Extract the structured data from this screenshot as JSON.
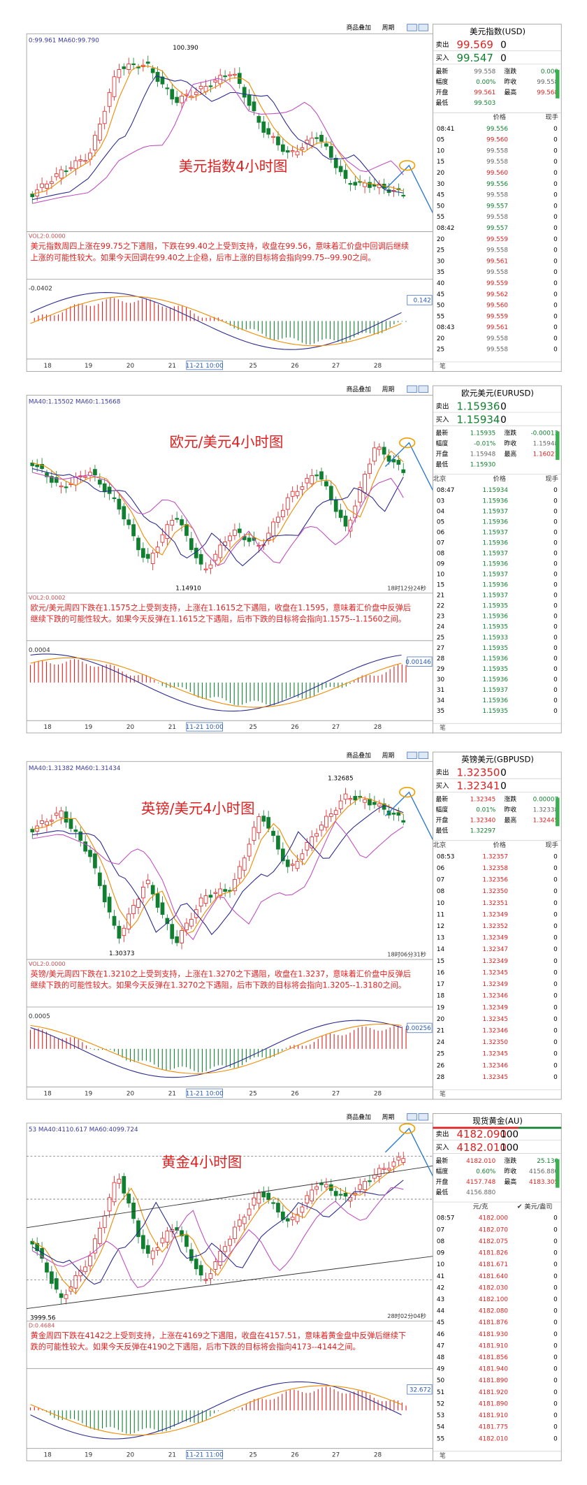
{
  "toolbar": [
    "商品叠加",
    "周期"
  ],
  "footer": "笔",
  "panels": [
    {
      "ma_legend": "0:99.961 MA60:99.790",
      "chart_title": "美元指数4小时图",
      "price_labels": [
        "100.390"
      ],
      "clock": null,
      "commentary": "美元指数周四上涨在99.75之下遇阻，下跌在99.40之上受到支持，收盘在99.56，意味着汇价盘中回调后继续上涨的可能性较大。如果今天回调在99.40之上企稳，后市上涨的目标将会指向99.75--99.90之间。",
      "vol_label": "VOL2:0.0000",
      "macd_label": "-0.0402",
      "macd_value": "0.142",
      "x_labels": [
        "18",
        "19",
        "20",
        "21",
        "11-21 10:00",
        "25",
        "26",
        "27",
        "28"
      ],
      "quote": {
        "title": "美元指数(USD)",
        "sell": [
          "卖出",
          "99.569",
          "0"
        ],
        "buy": [
          "买入",
          "99.547",
          "0"
        ],
        "stats": [
          [
            "最新",
            "99.558",
            "涨跌",
            "0.000"
          ],
          [
            "幅度",
            "0.00%",
            "昨收",
            "99.558"
          ],
          [
            "开盘",
            "99.561",
            "最高",
            "99.568"
          ],
          [
            "最低",
            "99.503"
          ]
        ],
        "header": [
          "价格",
          "现手"
        ],
        "ticks": [
          [
            "08:41",
            "99.556",
            "0"
          ],
          [
            "05",
            "99.560",
            "0"
          ],
          [
            "10",
            "99.558",
            "0"
          ],
          [
            "15",
            "99.558",
            "0"
          ],
          [
            "20",
            "99.560",
            "0"
          ],
          [
            "30",
            "99.556",
            "0"
          ],
          [
            "45",
            "99.558",
            "0"
          ],
          [
            "50",
            "99.557",
            "0"
          ],
          [
            "55",
            "99.558",
            "0"
          ],
          [
            "08:42",
            "99.557",
            "0"
          ],
          [
            "20",
            "99.559",
            "0"
          ],
          [
            "25",
            "99.558",
            "0"
          ],
          [
            "30",
            "99.561",
            "0"
          ],
          [
            "35",
            "99.558",
            "0"
          ],
          [
            "40",
            "99.559",
            "0"
          ],
          [
            "45",
            "99.562",
            "0"
          ],
          [
            "50",
            "99.560",
            "0"
          ],
          [
            "55",
            "99.559",
            "0"
          ],
          [
            "08:43",
            "99.561",
            "0"
          ],
          [
            "20",
            "99.558",
            "0"
          ],
          [
            "25",
            "99.558",
            "0"
          ]
        ]
      }
    },
    {
      "ma_legend": "MA40:1.15502 MA60:1.15668",
      "chart_title": "欧元/美元4小时图",
      "price_labels": [
        "1.14910"
      ],
      "clock": "18时12分24秒",
      "commentary": "欧元/美元周四下跌在1.1575之上受到支持，上涨在1.1615之下遇阻，收盘在1.1595，意味着汇价盘中反弹后继续下跌的可能性较大。如果今天反弹在1.1615之下遇阻，后市下跌的目标将会指向1.1575--1.1560之间。",
      "vol_label": "VOL2:0.0002",
      "macd_label": "0.0004",
      "macd_value": "0.00146",
      "x_labels": [
        "18",
        "19",
        "20",
        "21",
        "11-21 10:00",
        "25",
        "26",
        "27",
        "28"
      ],
      "quote": {
        "title": "欧元美元(EURUSD)",
        "sell": [
          "卖出",
          "1.15936",
          "0"
        ],
        "buy": [
          "买入",
          "1.15934",
          "0"
        ],
        "stats": [
          [
            "最新",
            "1.15935",
            "涨跌",
            "-0.00013"
          ],
          [
            "幅度",
            "-0.01%",
            "昨收",
            "1.15948"
          ],
          [
            "开盘",
            "1.15948",
            "最高",
            "1.16021"
          ],
          [
            "最低",
            "1.15930"
          ]
        ],
        "header": [
          "北京",
          "价格",
          "现手"
        ],
        "ticks": [
          [
            "08:47",
            "1.15934",
            "0"
          ],
          [
            "03",
            "1.15936",
            "0"
          ],
          [
            "04",
            "1.15937",
            "0"
          ],
          [
            "05",
            "1.15936",
            "0"
          ],
          [
            "06",
            "1.15937",
            "0"
          ],
          [
            "07",
            "1.15936",
            "0"
          ],
          [
            "08",
            "1.15937",
            "0"
          ],
          [
            "09",
            "1.15936",
            "0"
          ],
          [
            "10",
            "1.15937",
            "0"
          ],
          [
            "15",
            "1.15936",
            "0"
          ],
          [
            "21",
            "1.15937",
            "0"
          ],
          [
            "22",
            "1.15935",
            "0"
          ],
          [
            "23",
            "1.15936",
            "0"
          ],
          [
            "24",
            "1.15935",
            "0"
          ],
          [
            "25",
            "1.15933",
            "0"
          ],
          [
            "27",
            "1.15935",
            "0"
          ],
          [
            "28",
            "1.15936",
            "0"
          ],
          [
            "29",
            "1.15935",
            "0"
          ],
          [
            "30",
            "1.15936",
            "0"
          ],
          [
            "31",
            "1.15937",
            "0"
          ],
          [
            "34",
            "1.15936",
            "0"
          ],
          [
            "35",
            "1.15935",
            "0"
          ]
        ]
      }
    },
    {
      "ma_legend": "MA40:1.31382 MA60:1.31434",
      "chart_title": "英镑/美元4小时图",
      "price_labels": [
        "1.32685",
        "1.30373"
      ],
      "clock": "18时06分31秒",
      "commentary": "英镑/美元周四下跌在1.3210之上受到支持，上涨在1.3270之下遇阻，收盘在1.3237，意味着汇价盘中反弹后继续下跌的可能性较大。如果今天反弹在1.3270之下遇阻，后市下跌的目标将会指向1.3205--1.3180之间。",
      "vol_label": "VOL2:0.0000",
      "macd_label": "0.0005",
      "macd_value": "0.00256",
      "x_labels": [
        "18",
        "19",
        "20",
        "21",
        "11-21 10:00",
        "25",
        "26",
        "27",
        "28"
      ],
      "quote": {
        "title": "英镑美元(GBPUSD)",
        "sell": [
          "卖出",
          "1.32350",
          "0"
        ],
        "buy": [
          "买入",
          "1.32341",
          "0"
        ],
        "stats": [
          [
            "最新",
            "1.32345",
            "涨跌",
            "0.00007"
          ],
          [
            "幅度",
            "0.01%",
            "昨收",
            "1.32338"
          ],
          [
            "开盘",
            "1.32340",
            "最高",
            "1.32445"
          ],
          [
            "最低",
            "1.32297"
          ]
        ],
        "header": [
          "北京",
          "价格",
          "现手"
        ],
        "ticks": [
          [
            "08:53",
            "1.32357",
            "0"
          ],
          [
            "06",
            "1.32358",
            "0"
          ],
          [
            "07",
            "1.32356",
            "0"
          ],
          [
            "08",
            "1.32350",
            "0"
          ],
          [
            "10",
            "1.32351",
            "0"
          ],
          [
            "11",
            "1.32349",
            "0"
          ],
          [
            "12",
            "1.32352",
            "0"
          ],
          [
            "13",
            "1.32349",
            "0"
          ],
          [
            "14",
            "1.32347",
            "0"
          ],
          [
            "15",
            "1.32349",
            "0"
          ],
          [
            "16",
            "1.32345",
            "0"
          ],
          [
            "17",
            "1.32349",
            "0"
          ],
          [
            "18",
            "1.32346",
            "0"
          ],
          [
            "19",
            "1.32349",
            "0"
          ],
          [
            "20",
            "1.32345",
            "0"
          ],
          [
            "21",
            "1.32346",
            "0"
          ],
          [
            "24",
            "1.32350",
            "0"
          ],
          [
            "25",
            "1.32345",
            "0"
          ],
          [
            "26",
            "1.32346",
            "0"
          ],
          [
            "28",
            "1.32345",
            "0"
          ]
        ]
      }
    },
    {
      "ma_legend": "53 MA40:4110.617 MA60:4099.724",
      "chart_title": "黄金4小时图",
      "price_labels": [
        "3999.56"
      ],
      "clock": "28时02分04秒",
      "commentary": "黄金周四下跌在4142之上受到支持，上涨在4169之下遇阻，收盘在4157.51，意味着黄金盘中反弹后继续下跌的可能性较大。如果今天反弹在4190之下遇阻，后市下跌的目标将会指向4173--4144之间。",
      "vol_label": "D:0.4684",
      "macd_label": null,
      "macd_value": "32.672",
      "x_labels": [
        "18",
        "19",
        "20",
        "21",
        "11-21 11:00",
        "25",
        "26",
        "27",
        "28"
      ],
      "quote": {
        "title": "现货黄金(AU)",
        "sell": [
          "卖出",
          "4182.090",
          "100"
        ],
        "buy": [
          "买入",
          "4182.010",
          "100"
        ],
        "stats": [
          [
            "最新",
            "4182.010",
            "涨跌",
            "25.130"
          ],
          [
            "幅度",
            "0.60%",
            "昨收",
            "4156.880"
          ],
          [
            "开盘",
            "4157.748",
            "最高",
            "4183.305"
          ],
          [
            "最低",
            "4156.880"
          ]
        ],
        "header": [
          "元/克",
          "✔ 美元/盎司"
        ],
        "ticks": [
          [
            "08:57",
            "4182.000",
            "0"
          ],
          [
            "07",
            "4182.070",
            "0"
          ],
          [
            "08",
            "4182.075",
            "0"
          ],
          [
            "09",
            "4181.826",
            "0"
          ],
          [
            "10",
            "4181.671",
            "0"
          ],
          [
            "41",
            "4181.640",
            "0"
          ],
          [
            "42",
            "4182.030",
            "0"
          ],
          [
            "43",
            "4182.100",
            "0"
          ],
          [
            "44",
            "4182.080",
            "0"
          ],
          [
            "45",
            "4181.876",
            "0"
          ],
          [
            "46",
            "4181.930",
            "0"
          ],
          [
            "47",
            "4181.910",
            "0"
          ],
          [
            "48",
            "4181.856",
            "0"
          ],
          [
            "49",
            "4181.940",
            "0"
          ],
          [
            "50",
            "4181.890",
            "0"
          ],
          [
            "51",
            "4181.920",
            "0"
          ],
          [
            "52",
            "4181.890",
            "0"
          ],
          [
            "53",
            "4181.910",
            "0"
          ],
          [
            "54",
            "4181.775",
            "0"
          ],
          [
            "55",
            "4182.010",
            "0"
          ]
        ]
      }
    }
  ]
}
